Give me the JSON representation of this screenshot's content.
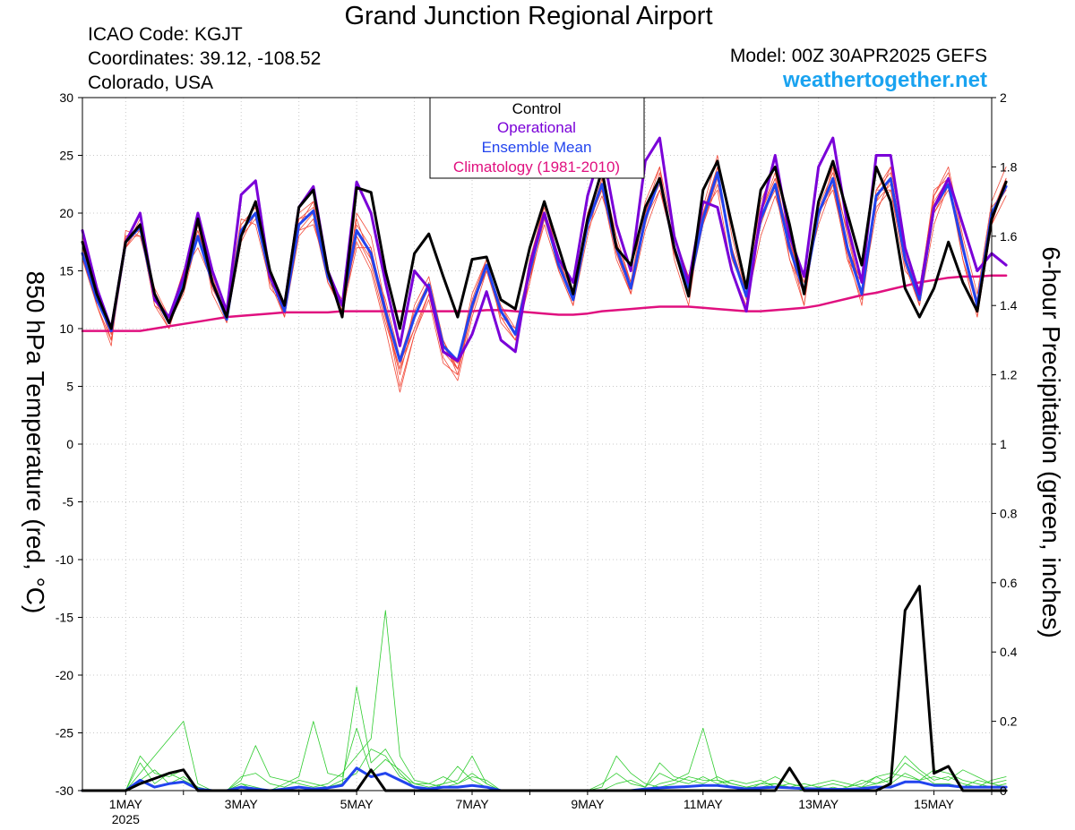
{
  "header": {
    "title": "Grand Junction Regional Airport",
    "icao_line": "ICAO Code: KGJT",
    "coords_line": "Coordinates: 39.12, -108.52",
    "location_line": "Colorado, USA",
    "model_line": "Model: 00Z 30APR2025 GEFS",
    "site": "weathertogether.net"
  },
  "colors": {
    "control": "#000000",
    "operational": "#7a00d8",
    "ensemble_mean": "#2244ee",
    "climatology": "#e0107f",
    "temp_members": "#f24a3a",
    "precip_members": "#2ecc2e",
    "site": "#1aa3f0"
  },
  "chart_data": {
    "type": "line",
    "title": "Grand Junction Regional Airport",
    "ylabel": "850 hPa Temperature (red, °C)",
    "ylabel_right": "6-hour Precipitation (green, inches)",
    "ylim": [
      -30,
      30
    ],
    "ylim_right": [
      0,
      2
    ],
    "yticks": [
      "30",
      "25",
      "20",
      "15",
      "10",
      "5",
      "0",
      "-5",
      "-10",
      "-15",
      "-20",
      "-25",
      "-30"
    ],
    "yticks_right": [
      "2",
      "1.8",
      "1.6",
      "1.4",
      "1.2",
      "1",
      "0.8",
      "0.6",
      "0.4",
      "0.2",
      "0"
    ],
    "x_start": "2025-04-30T06",
    "x_end": "2025-05-16T00",
    "x_step_hours": 6,
    "xticks": [
      {
        "label": "1MAY",
        "sub": "2025",
        "date": "2025-05-01T00"
      },
      {
        "label": "3MAY",
        "date": "2025-05-03T00"
      },
      {
        "label": "5MAY",
        "date": "2025-05-05T00"
      },
      {
        "label": "7MAY",
        "date": "2025-05-07T00"
      },
      {
        "label": "9MAY",
        "date": "2025-05-09T00"
      },
      {
        "label": "11MAY",
        "date": "2025-05-11T00"
      },
      {
        "label": "13MAY",
        "date": "2025-05-13T00"
      },
      {
        "label": "15MAY",
        "date": "2025-05-15T00"
      }
    ],
    "legend": {
      "position": "top-center",
      "items": [
        "Control",
        "Operational",
        "Ensemble Mean",
        "Climatology (1981-2010)"
      ]
    },
    "temperature": {
      "control": [
        17.5,
        13,
        10,
        17.5,
        19,
        13,
        10.5,
        13.5,
        19.5,
        14,
        11,
        18,
        21,
        15,
        12,
        20.5,
        22,
        15,
        11,
        22.2,
        21.8,
        15,
        10,
        16.5,
        18.2,
        14.5,
        11,
        16,
        16.2,
        12.5,
        11.7,
        17,
        21,
        17,
        13,
        19.5,
        23.7,
        17,
        15.5,
        20.5,
        23,
        17,
        12.8,
        22,
        24.5,
        19,
        13.5,
        22,
        24,
        19,
        13,
        21,
        24.5,
        20,
        15.5,
        24,
        21,
        13.5,
        11,
        13.5,
        17.5,
        14,
        11.5,
        19.5,
        22.7
      ],
      "operational": [
        18.5,
        13.5,
        10,
        17.5,
        20,
        12.5,
        11,
        14.5,
        20,
        15,
        11.5,
        21.6,
        22.8,
        14.5,
        12,
        20.5,
        22.3,
        15,
        12,
        22.7,
        20,
        14,
        8.5,
        15,
        13.5,
        8,
        7.2,
        9.5,
        13.2,
        9,
        8,
        15.5,
        20,
        16,
        14,
        21.5,
        25.7,
        19,
        15,
        24.5,
        26.5,
        18,
        14,
        21,
        20.5,
        15,
        11.5,
        20,
        25,
        18,
        14.5,
        24,
        26.5,
        19,
        14,
        25,
        25,
        17,
        13,
        20.5,
        23,
        19,
        15,
        16.5,
        15.5
      ],
      "ensemble_mean": [
        16.5,
        12.5,
        9.8,
        17.5,
        18.8,
        12.8,
        10.5,
        14,
        18,
        14,
        10.8,
        18.5,
        20,
        14.5,
        11.5,
        19,
        20.2,
        14.5,
        12,
        18.5,
        16.5,
        11.5,
        7.2,
        11,
        13.8,
        8.5,
        7.2,
        12,
        15.5,
        11.5,
        9.5,
        15,
        20,
        15.5,
        12.5,
        19,
        22.5,
        17,
        13.5,
        19.5,
        23,
        17,
        13.5,
        19.5,
        23.5,
        16.5,
        12.8,
        19.5,
        22.5,
        17,
        13.2,
        20,
        23,
        17,
        13,
        21.5,
        23,
        16,
        12.5,
        20.5,
        22.5,
        17,
        12,
        20,
        22.3
      ],
      "climatology": [
        9.8,
        9.8,
        9.8,
        9.8,
        9.8,
        10,
        10.2,
        10.4,
        10.6,
        10.8,
        11,
        11.1,
        11.2,
        11.3,
        11.4,
        11.4,
        11.4,
        11.4,
        11.5,
        11.5,
        11.5,
        11.5,
        11.5,
        11.5,
        11.5,
        11.5,
        11.5,
        11.5,
        11.6,
        11.6,
        11.5,
        11.4,
        11.3,
        11.2,
        11.2,
        11.3,
        11.5,
        11.6,
        11.7,
        11.8,
        11.9,
        11.9,
        11.9,
        11.8,
        11.7,
        11.6,
        11.5,
        11.5,
        11.6,
        11.7,
        11.8,
        12,
        12.3,
        12.6,
        12.9,
        13.1,
        13.4,
        13.7,
        14,
        14.2,
        14.4,
        14.5,
        14.5,
        14.6,
        14.6
      ],
      "members": [
        [
          17,
          13,
          9,
          18,
          18.5,
          12,
          10,
          14,
          19,
          13.5,
          11,
          19,
          20.5,
          15,
          12,
          20,
          21,
          14,
          11.5,
          19,
          17,
          11,
          6.5,
          12,
          14.5,
          9,
          6.5,
          12,
          16,
          10.5,
          9,
          14,
          21,
          16,
          12.5,
          20,
          23.5,
          18,
          14,
          21,
          24,
          16,
          12,
          20.5,
          25,
          18,
          13,
          21,
          24,
          16,
          12,
          21,
          24,
          18,
          13,
          22,
          24,
          17,
          12,
          21,
          23,
          16,
          11,
          19,
          23
        ],
        [
          18,
          13.5,
          10,
          17,
          19.5,
          13,
          10.5,
          13,
          18,
          15,
          11.5,
          19.5,
          19,
          14,
          11,
          18,
          19.5,
          14,
          12,
          17.5,
          15,
          10,
          4.5,
          9.5,
          13,
          7.5,
          5.5,
          11,
          15,
          12,
          10,
          14,
          19.5,
          15.5,
          13,
          19,
          22,
          16,
          13,
          18.5,
          22,
          18,
          14.5,
          20,
          22,
          15,
          12,
          18,
          21.5,
          17.5,
          14,
          19,
          22.5,
          16,
          14,
          20.5,
          22,
          15,
          13.5,
          21.5,
          24,
          18,
          13,
          21,
          24
        ],
        [
          16,
          12,
          8.5,
          18.5,
          18,
          13.5,
          11,
          15,
          17,
          14,
          10.5,
          18,
          21,
          13.5,
          12,
          19.5,
          20,
          15,
          11,
          20,
          18,
          12,
          7,
          10,
          13,
          8,
          7,
          13,
          16,
          11,
          9,
          16,
          20.5,
          15,
          12,
          18,
          23,
          17.5,
          13,
          20,
          22.5,
          17,
          13,
          19,
          23,
          17,
          13,
          20,
          23,
          17.5,
          13.5,
          20,
          23,
          18.5,
          13,
          22,
          23.5,
          16.5,
          12,
          20,
          22,
          17,
          12.5,
          20.5,
          22
        ],
        [
          17,
          12.5,
          9.5,
          17,
          19,
          12.5,
          10,
          14,
          19.5,
          13,
          10.5,
          17.5,
          20,
          15,
          11,
          19,
          21,
          14.5,
          12.5,
          18,
          16,
          11,
          6,
          11,
          13.5,
          9,
          6,
          11.5,
          15.5,
          12,
          9.5,
          14.5,
          19,
          15,
          12,
          19.5,
          22.5,
          16.5,
          13.5,
          19,
          23.5,
          16.5,
          13,
          20,
          24,
          16,
          13,
          19.5,
          22,
          16,
          13,
          20,
          22,
          16.5,
          12,
          21,
          22.5,
          15.5,
          12,
          19,
          22.5,
          16,
          11,
          19,
          21.5
        ],
        [
          16.5,
          12,
          9,
          18,
          18,
          13,
          11,
          15,
          18.5,
          14.5,
          11,
          18.5,
          20,
          14,
          12,
          18.5,
          19,
          15,
          11.5,
          17,
          17,
          11.5,
          5,
          9.5,
          12.5,
          7,
          6,
          12,
          15,
          11,
          10,
          15.5,
          21,
          16,
          13,
          18.5,
          21.5,
          17.5,
          14,
          20,
          24,
          18,
          14,
          19,
          22.5,
          17,
          12.5,
          19,
          22.5,
          18,
          13,
          19.5,
          24,
          17,
          14,
          21,
          24,
          17,
          13,
          21.5,
          23.5,
          17.5,
          11.5,
          20,
          23
        ],
        [
          17.5,
          12,
          9,
          17,
          18.5,
          12,
          11,
          13.5,
          18,
          14,
          11,
          18,
          19.5,
          15,
          11.5,
          19.5,
          20.5,
          14,
          12,
          19.5,
          16,
          12.5,
          7.5,
          11.5,
          14,
          8.5,
          6.5,
          12.5,
          16,
          11,
          9,
          15,
          20,
          16,
          12.5,
          19,
          22,
          16.5,
          13,
          19.5,
          22,
          17,
          13,
          20,
          24,
          16.5,
          13,
          20,
          23,
          17,
          12,
          20.5,
          23.5,
          17,
          13,
          20,
          23,
          16,
          13,
          22,
          23,
          16,
          12,
          20,
          23
        ],
        [
          16,
          12.5,
          9.5,
          17.5,
          19,
          13,
          10.5,
          14.5,
          18.5,
          13.5,
          11.5,
          19,
          20.5,
          14.5,
          11,
          18.5,
          20,
          15,
          11,
          18,
          15.5,
          10.5,
          6.5,
          10,
          13,
          8,
          6.5,
          12,
          15,
          11.5,
          9.5,
          15,
          20,
          15,
          12,
          19,
          23,
          17,
          14,
          20,
          23,
          17,
          14,
          20,
          23.5,
          17,
          13,
          20,
          23.5,
          17,
          14,
          20,
          22.5,
          16,
          12.5,
          22,
          22,
          16,
          12,
          20,
          22.5,
          17,
          12,
          20,
          22
        ]
      ]
    },
    "precipitation": {
      "control": [
        0,
        0,
        0,
        0,
        0.02,
        0.035,
        0.05,
        0.06,
        0,
        0,
        0,
        0,
        0,
        0,
        0,
        0,
        0,
        0,
        0,
        0,
        0.06,
        0,
        0,
        0,
        0,
        0,
        0,
        0,
        0,
        0,
        0,
        0,
        0,
        0,
        0,
        0,
        0,
        0,
        0,
        0,
        0,
        0,
        0,
        0,
        0,
        0,
        0,
        0,
        0,
        0.065,
        0,
        0,
        0,
        0,
        0,
        0,
        0.02,
        0.52,
        0.59,
        0.05,
        0.07,
        0,
        0,
        0,
        0
      ],
      "ensemble_mean": [
        0,
        0,
        0,
        0,
        0.03,
        0.01,
        0.02,
        0.025,
        0.005,
        0,
        0,
        0.01,
        0.005,
        0,
        0.005,
        0.01,
        0.005,
        0.008,
        0.015,
        0.065,
        0.04,
        0.05,
        0.03,
        0.01,
        0.005,
        0.01,
        0.01,
        0.015,
        0.01,
        0,
        0,
        0,
        0,
        0,
        0,
        0,
        0,
        0,
        0,
        0.005,
        0.008,
        0.01,
        0.012,
        0.015,
        0.015,
        0.01,
        0.005,
        0.008,
        0.01,
        0.008,
        0.006,
        0.005,
        0.004,
        0.004,
        0.006,
        0.01,
        0.01,
        0.025,
        0.025,
        0.015,
        0.015,
        0.01,
        0.01,
        0.01,
        0.01
      ]
    }
  }
}
